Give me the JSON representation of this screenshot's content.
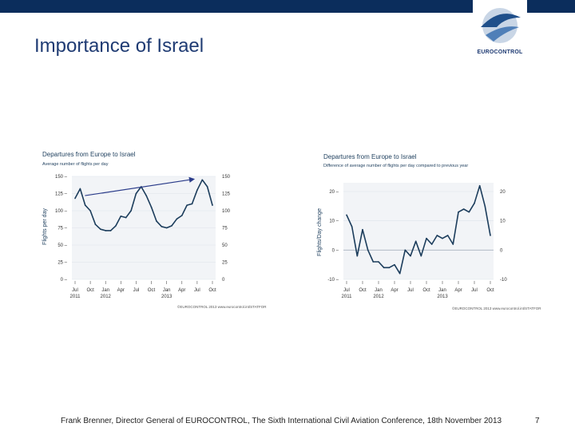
{
  "slide": {
    "title": "Importance of Israel",
    "footer": "Frank Brenner, Director General of EUROCONTROL, The Sixth International Civil Aviation Conference, 18th November 2013",
    "page_number": "7",
    "logo_text": "EUROCONTROL",
    "colors": {
      "top_bar": "#0b2d5c",
      "title": "#1f3b73",
      "line": "#1c3d5c",
      "arrow": "#2b3c8a"
    }
  },
  "chart_data": [
    {
      "type": "line",
      "title": "Departures from Europe to Israel",
      "subtitle": "Average number of flights per day",
      "ylabel": "Flights per day",
      "xlabel": "",
      "ylim": [
        0,
        150
      ],
      "yticks": [
        0,
        25,
        50,
        75,
        100,
        125,
        150
      ],
      "ytick_labels": [
        "0",
        "25",
        "50",
        "75",
        "100",
        "125",
        "150"
      ],
      "xtick_labels": [
        "Jul",
        "Oct",
        "Jan",
        "Apr",
        "Jul",
        "Oct",
        "Jan",
        "Apr",
        "Jul",
        "Oct"
      ],
      "xtick_index": [
        0,
        3,
        6,
        9,
        12,
        15,
        18,
        21,
        24,
        27
      ],
      "year_labels": [
        {
          "label": "2011",
          "index": 0
        },
        {
          "label": "2012",
          "index": 6
        },
        {
          "label": "2013",
          "index": 18
        }
      ],
      "source": "©EUROCONTROL 2013 www.eurocontrol.int/STATFOR",
      "annotation": "upward trend arrow",
      "series": [
        {
          "name": "Average number of flights per day",
          "values": [
            118,
            132,
            108,
            100,
            80,
            73,
            71,
            71,
            78,
            92,
            90,
            100,
            125,
            135,
            122,
            105,
            85,
            77,
            75,
            78,
            88,
            93,
            108,
            110,
            130,
            145,
            135,
            108
          ]
        }
      ]
    },
    {
      "type": "line",
      "title": "Departures from Europe to Israel",
      "subtitle": "Difference of average number of flights per day compared to previous year",
      "ylabel": "Flights/Day change",
      "xlabel": "",
      "ylim": [
        -10,
        23
      ],
      "yticks": [
        -10,
        0,
        10,
        20
      ],
      "ytick_labels": [
        "-10",
        "0",
        "10",
        "20"
      ],
      "xtick_labels": [
        "Jul",
        "Oct",
        "Jan",
        "Apr",
        "Jul",
        "Oct",
        "Jan",
        "Apr",
        "Jul",
        "Oct"
      ],
      "xtick_index": [
        0,
        3,
        6,
        9,
        12,
        15,
        18,
        21,
        24,
        27
      ],
      "year_labels": [
        {
          "label": "2011",
          "index": 0
        },
        {
          "label": "2012",
          "index": 6
        },
        {
          "label": "2013",
          "index": 18
        }
      ],
      "source": "©EUROCONTROL 2013 www.eurocontrol.int/STATFOR",
      "series": [
        {
          "name": "Change vs previous year",
          "values": [
            12,
            8,
            -2,
            7,
            0,
            -4,
            -4,
            -6,
            -6,
            -5,
            -8,
            0,
            -2,
            3,
            -2,
            4,
            2,
            5,
            4,
            5,
            2,
            13,
            14,
            13,
            16,
            22,
            15,
            5
          ]
        }
      ]
    }
  ]
}
